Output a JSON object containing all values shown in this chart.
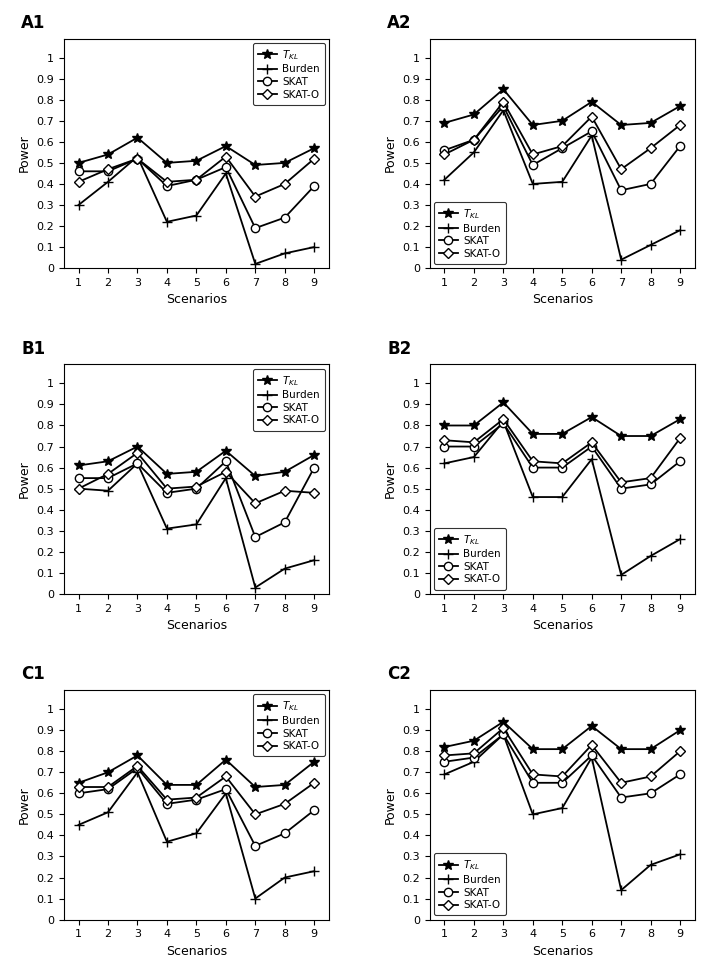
{
  "scenarios": [
    1,
    2,
    3,
    4,
    5,
    6,
    7,
    8,
    9
  ],
  "panels": {
    "A1": {
      "TKL": [
        0.5,
        0.54,
        0.62,
        0.5,
        0.51,
        0.58,
        0.49,
        0.5,
        0.57
      ],
      "Burden": [
        0.3,
        0.41,
        0.53,
        0.22,
        0.25,
        0.45,
        0.02,
        0.07,
        0.1
      ],
      "SKAT": [
        0.46,
        0.46,
        0.52,
        0.39,
        0.42,
        0.48,
        0.19,
        0.24,
        0.39
      ],
      "SKATO": [
        0.41,
        0.47,
        0.52,
        0.41,
        0.42,
        0.53,
        0.34,
        0.4,
        0.52
      ]
    },
    "A2": {
      "TKL": [
        0.69,
        0.73,
        0.85,
        0.68,
        0.7,
        0.79,
        0.68,
        0.69,
        0.77
      ],
      "Burden": [
        0.42,
        0.55,
        0.75,
        0.4,
        0.41,
        0.63,
        0.04,
        0.11,
        0.18
      ],
      "SKAT": [
        0.56,
        0.61,
        0.77,
        0.49,
        0.57,
        0.65,
        0.37,
        0.4,
        0.58
      ],
      "SKATO": [
        0.54,
        0.61,
        0.79,
        0.54,
        0.58,
        0.72,
        0.47,
        0.57,
        0.68
      ]
    },
    "B1": {
      "TKL": [
        0.61,
        0.63,
        0.7,
        0.57,
        0.58,
        0.68,
        0.56,
        0.58,
        0.66
      ],
      "Burden": [
        0.5,
        0.49,
        0.62,
        0.31,
        0.33,
        0.55,
        0.03,
        0.12,
        0.16
      ],
      "SKAT": [
        0.55,
        0.55,
        0.62,
        0.48,
        0.5,
        0.63,
        0.27,
        0.34,
        0.6
      ],
      "SKATO": [
        0.5,
        0.57,
        0.67,
        0.5,
        0.51,
        0.58,
        0.43,
        0.49,
        0.48
      ]
    },
    "B2": {
      "TKL": [
        0.8,
        0.8,
        0.91,
        0.76,
        0.76,
        0.84,
        0.75,
        0.75,
        0.83
      ],
      "Burden": [
        0.62,
        0.65,
        0.82,
        0.46,
        0.46,
        0.64,
        0.09,
        0.18,
        0.26
      ],
      "SKAT": [
        0.7,
        0.7,
        0.81,
        0.6,
        0.6,
        0.7,
        0.5,
        0.52,
        0.63
      ],
      "SKATO": [
        0.73,
        0.72,
        0.83,
        0.63,
        0.62,
        0.72,
        0.53,
        0.55,
        0.74
      ]
    },
    "C1": {
      "TKL": [
        0.65,
        0.7,
        0.78,
        0.64,
        0.64,
        0.76,
        0.63,
        0.64,
        0.75
      ],
      "Burden": [
        0.45,
        0.51,
        0.7,
        0.37,
        0.41,
        0.6,
        0.1,
        0.2,
        0.23
      ],
      "SKAT": [
        0.6,
        0.62,
        0.72,
        0.55,
        0.57,
        0.62,
        0.35,
        0.41,
        0.52
      ],
      "SKATO": [
        0.63,
        0.63,
        0.73,
        0.57,
        0.58,
        0.68,
        0.5,
        0.55,
        0.65
      ]
    },
    "C2": {
      "TKL": [
        0.82,
        0.85,
        0.94,
        0.81,
        0.81,
        0.92,
        0.81,
        0.81,
        0.9
      ],
      "Burden": [
        0.69,
        0.75,
        0.88,
        0.5,
        0.53,
        0.77,
        0.14,
        0.26,
        0.31
      ],
      "SKAT": [
        0.75,
        0.77,
        0.88,
        0.65,
        0.65,
        0.78,
        0.58,
        0.6,
        0.69
      ],
      "SKATO": [
        0.78,
        0.79,
        0.91,
        0.69,
        0.68,
        0.83,
        0.65,
        0.68,
        0.8
      ]
    }
  },
  "line_color": "black",
  "markers": {
    "TKL": "*",
    "Burden": "+",
    "SKAT": "o",
    "SKATO": "D"
  },
  "marker_sizes": {
    "TKL": 7,
    "Burden": 7,
    "SKAT": 6,
    "SKATO": 5
  },
  "ylim": [
    0,
    1.09
  ],
  "yticks": [
    0,
    0.1,
    0.2,
    0.3,
    0.4,
    0.5,
    0.6,
    0.7,
    0.8,
    0.9,
    1.0
  ],
  "ytick_labels": [
    "0",
    "0.1",
    "0.2",
    "0.3",
    "0.4",
    "0.5",
    "0.6",
    "0.7",
    "0.8",
    "0.9",
    "1"
  ],
  "xlabel": "Scenarios",
  "ylabel": "Power",
  "panel_labels": [
    "A1",
    "A2",
    "B1",
    "B2",
    "C1",
    "C2"
  ],
  "legend_upper_right": [
    "A1",
    "B1",
    "C1"
  ],
  "legend_lower_left": [
    "A2",
    "B2",
    "C2"
  ]
}
